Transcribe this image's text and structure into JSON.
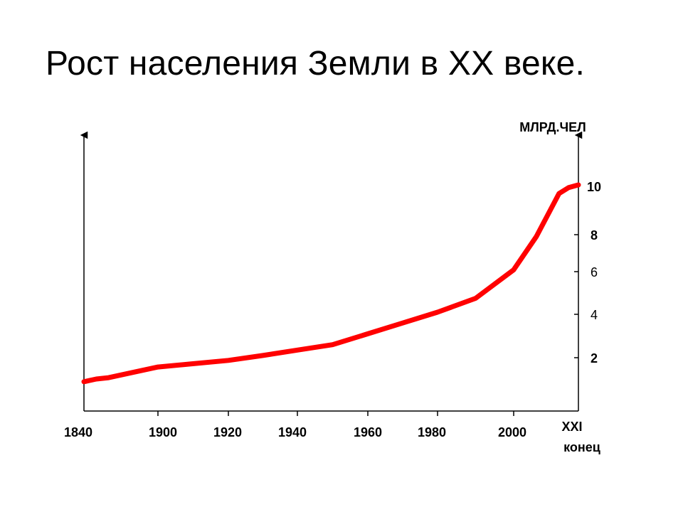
{
  "slide": {
    "title": "Рост населения Земли в XX веке."
  },
  "chart_data": {
    "type": "line",
    "title": "Рост населения Земли в XX веке.",
    "ylabel": "МЛРД.ЧЕЛ",
    "x_tick_labels": [
      "1840",
      "1900",
      "1920",
      "1940",
      "1960",
      "1980",
      "2000"
    ],
    "x_end_label_lines": [
      "XXI",
      "конец"
    ],
    "y_ticks": [
      {
        "value": 2,
        "label": "2",
        "bold": true
      },
      {
        "value": 4,
        "label": "4",
        "bold": false
      },
      {
        "value": 6,
        "label": "6",
        "bold": false
      },
      {
        "value": 8,
        "label": "8",
        "bold": true
      },
      {
        "value": 10,
        "label": "10",
        "bold": true
      }
    ],
    "series": [
      {
        "color": "#ff0000",
        "points": [
          {
            "x": 1840,
            "y": 1.1
          },
          {
            "x": 1850,
            "y": 1.2
          },
          {
            "x": 1860,
            "y": 1.25
          },
          {
            "x": 1880,
            "y": 1.45
          },
          {
            "x": 1900,
            "y": 1.65
          },
          {
            "x": 1920,
            "y": 1.9
          },
          {
            "x": 1930,
            "y": 2.1
          },
          {
            "x": 1940,
            "y": 2.35
          },
          {
            "x": 1950,
            "y": 2.6
          },
          {
            "x": 1960,
            "y": 3.1
          },
          {
            "x": 1970,
            "y": 3.6
          },
          {
            "x": 1980,
            "y": 4.1
          },
          {
            "x": 1990,
            "y": 4.75
          },
          {
            "x": 2000,
            "y": 6.1
          },
          {
            "x": 2007,
            "y": 7.9
          },
          {
            "x": 2014,
            "y": 9.7
          },
          {
            "x": 2017,
            "y": 9.95
          },
          {
            "x": 2020,
            "y": 10.1
          }
        ]
      }
    ],
    "grid": false
  }
}
